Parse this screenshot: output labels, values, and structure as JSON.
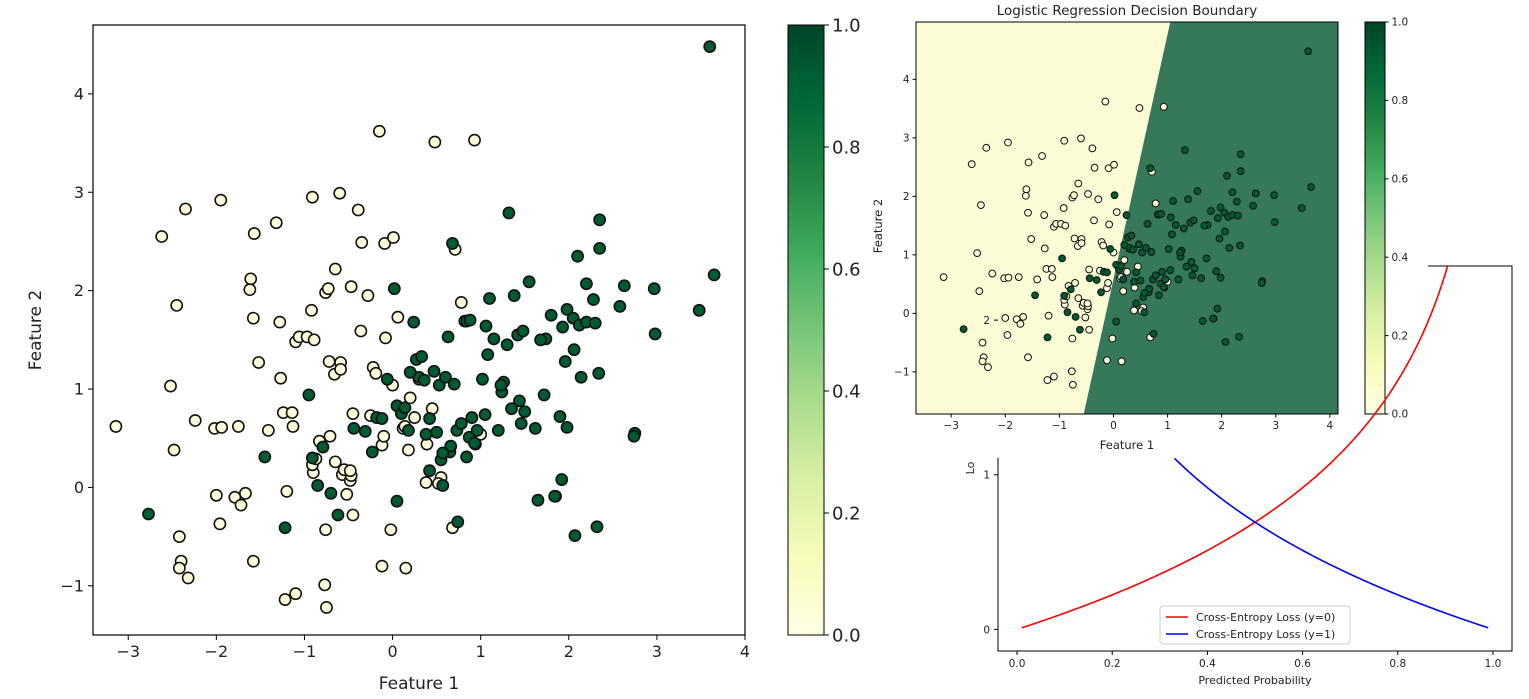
{
  "colors": {
    "class0_fill": "#ffffdd",
    "class1_fill": "#005a32",
    "point_edge": "#111111",
    "region0": "#fbfcd6",
    "region1": "#35785a",
    "colormap": [
      "#ffffe5",
      "#f7fcb9",
      "#d9f0a3",
      "#addd8e",
      "#78c679",
      "#41ab5d",
      "#238443",
      "#006837",
      "#004529"
    ],
    "loss_y0": "#ff0000",
    "loss_y1": "#0000ff"
  },
  "chart_data": [
    {
      "type": "scatter",
      "title": "",
      "xlabel": "Feature 1",
      "ylabel": "Feature 2",
      "xlim": [
        -3.4,
        4.0
      ],
      "ylim": [
        -1.5,
        4.7
      ],
      "xticks": [
        -3,
        -2,
        -1,
        0,
        1,
        2,
        3,
        4
      ],
      "yticks": [
        -1,
        0,
        1,
        2,
        3,
        4
      ],
      "xtick_labels": [
        "−3",
        "−2",
        "−1",
        "0",
        "1",
        "2",
        "3",
        "4"
      ],
      "ytick_labels": [
        "−1",
        "0",
        "1",
        "2",
        "3",
        "4"
      ],
      "colorbar": {
        "range": [
          0.0,
          1.0
        ],
        "ticks": [
          0.0,
          0.2,
          0.4,
          0.6,
          0.8,
          1.0
        ],
        "tick_labels": [
          "0.0",
          "0.2",
          "0.4",
          "0.6",
          "0.8",
          "1.0"
        ]
      },
      "series": [
        {
          "label": 0,
          "points": [
            [
              -3.14,
              0.62
            ],
            [
              -2.62,
              2.55
            ],
            [
              -2.52,
              1.03
            ],
            [
              -2.48,
              0.38
            ],
            [
              -2.45,
              1.85
            ],
            [
              -2.42,
              -0.5
            ],
            [
              -2.4,
              -0.75
            ],
            [
              -2.42,
              -0.82
            ],
            [
              -2.32,
              -0.92
            ],
            [
              -2.35,
              2.83
            ],
            [
              -2.24,
              0.68
            ],
            [
              -1.95,
              2.92
            ],
            [
              -2.02,
              0.6
            ],
            [
              -2.0,
              -0.08
            ],
            [
              -1.96,
              -0.37
            ],
            [
              -1.79,
              -0.1
            ],
            [
              -1.75,
              0.62
            ],
            [
              -1.72,
              -0.18
            ],
            [
              -1.67,
              -0.06
            ],
            [
              -1.61,
              2.12
            ],
            [
              -1.62,
              2.01
            ],
            [
              -1.58,
              1.72
            ],
            [
              -1.57,
              2.58
            ],
            [
              -1.52,
              1.27
            ],
            [
              -1.41,
              0.58
            ],
            [
              -1.32,
              2.69
            ],
            [
              -1.28,
              1.68
            ],
            [
              -1.27,
              1.11
            ],
            [
              -1.24,
              0.76
            ],
            [
              -1.2,
              -0.04
            ],
            [
              -1.14,
              0.76
            ],
            [
              -1.13,
              0.62
            ],
            [
              -1.1,
              1.48
            ],
            [
              -1.06,
              1.53
            ],
            [
              -0.97,
              1.53
            ],
            [
              -0.92,
              1.8
            ],
            [
              -0.9,
              0.15
            ],
            [
              -0.91,
              2.95
            ],
            [
              -0.89,
              1.5
            ],
            [
              -0.83,
              0.47
            ],
            [
              -0.77,
              -0.99
            ],
            [
              -0.76,
              1.98
            ],
            [
              -0.73,
              2.02
            ],
            [
              -0.72,
              1.28
            ],
            [
              -0.71,
              0.52
            ],
            [
              -0.66,
              1.15
            ],
            [
              -0.65,
              2.22
            ],
            [
              -0.65,
              0.26
            ],
            [
              -0.6,
              2.99
            ],
            [
              -0.59,
              1.27
            ],
            [
              -0.59,
              1.2
            ],
            [
              -0.57,
              0.13
            ],
            [
              -0.55,
              0.18
            ],
            [
              -0.52,
              -0.07
            ],
            [
              -0.48,
              0.07
            ],
            [
              -0.47,
              0.12
            ],
            [
              -0.47,
              2.04
            ],
            [
              -0.45,
              0.75
            ],
            [
              -0.39,
              2.82
            ],
            [
              -0.36,
              1.59
            ],
            [
              -0.35,
              2.49
            ],
            [
              -0.28,
              1.95
            ],
            [
              -0.25,
              0.73
            ],
            [
              -0.22,
              1.22
            ],
            [
              -0.19,
              1.16
            ],
            [
              -0.15,
              3.62
            ],
            [
              -0.12,
              0.43
            ],
            [
              -0.1,
              0.52
            ],
            [
              -0.09,
              2.48
            ],
            [
              -0.08,
              1.52
            ],
            [
              0.0,
              1.04
            ],
            [
              0.01,
              2.54
            ],
            [
              0.06,
              1.73
            ],
            [
              0.12,
              0.6
            ],
            [
              0.14,
              0.62
            ],
            [
              0.18,
              0.38
            ],
            [
              0.2,
              0.91
            ],
            [
              0.25,
              0.71
            ],
            [
              0.3,
              1.1
            ],
            [
              0.38,
              0.05
            ],
            [
              0.45,
              0.8
            ],
            [
              0.48,
              3.51
            ],
            [
              0.55,
              0.1
            ],
            [
              0.65,
              0.38
            ],
            [
              0.71,
              2.42
            ],
            [
              0.78,
              1.88
            ],
            [
              0.93,
              3.53
            ],
            [
              1.0,
              0.54
            ],
            [
              0.68,
              -0.41
            ],
            [
              -0.12,
              -0.8
            ],
            [
              0.15,
              -0.82
            ],
            [
              -0.75,
              -1.22
            ],
            [
              -1.1,
              -1.08
            ],
            [
              -1.22,
              -1.14
            ],
            [
              -0.02,
              -0.43
            ],
            [
              -0.45,
              -0.28
            ],
            [
              -1.58,
              -0.75
            ],
            [
              1.85,
              -0.09
            ],
            [
              -0.76,
              -0.43
            ],
            [
              -1.94,
              0.61
            ],
            [
              -0.91,
              0.23
            ],
            [
              0.39,
              0.44
            ],
            [
              0.52,
              0.04
            ],
            [
              -0.87,
              0.29
            ],
            [
              -0.48,
              0.17
            ],
            [
              0.82,
              1.69
            ]
          ]
        },
        {
          "label": 1,
          "points": [
            [
              -2.77,
              -0.27
            ],
            [
              -1.45,
              0.31
            ],
            [
              -1.22,
              -0.41
            ],
            [
              -0.95,
              0.94
            ],
            [
              -0.91,
              0.3
            ],
            [
              -0.85,
              0.02
            ],
            [
              -0.79,
              0.41
            ],
            [
              -0.7,
              -0.06
            ],
            [
              -0.62,
              -0.28
            ],
            [
              -0.44,
              0.6
            ],
            [
              -0.31,
              0.57
            ],
            [
              -0.23,
              0.36
            ],
            [
              -0.18,
              0.71
            ],
            [
              -0.12,
              0.7
            ],
            [
              -0.06,
              1.1
            ],
            [
              0.02,
              2.02
            ],
            [
              0.05,
              0.83
            ],
            [
              0.05,
              -0.14
            ],
            [
              0.1,
              0.75
            ],
            [
              0.14,
              0.81
            ],
            [
              0.18,
              0.58
            ],
            [
              0.24,
              1.68
            ],
            [
              0.27,
              1.3
            ],
            [
              0.3,
              1.12
            ],
            [
              0.33,
              1.33
            ],
            [
              0.36,
              1.09
            ],
            [
              0.42,
              0.7
            ],
            [
              0.42,
              0.17
            ],
            [
              0.47,
              1.18
            ],
            [
              0.5,
              0.56
            ],
            [
              0.53,
              1.04
            ],
            [
              0.55,
              0.28
            ],
            [
              0.57,
              0.02
            ],
            [
              0.6,
              1.12
            ],
            [
              0.63,
              1.53
            ],
            [
              0.65,
              0.36
            ],
            [
              0.66,
              0.42
            ],
            [
              0.68,
              2.48
            ],
            [
              0.7,
              1.05
            ],
            [
              0.73,
              0.58
            ],
            [
              0.74,
              -0.35
            ],
            [
              0.78,
              0.65
            ],
            [
              0.84,
              1.69
            ],
            [
              0.84,
              0.31
            ],
            [
              0.87,
              0.51
            ],
            [
              0.88,
              1.7
            ],
            [
              0.94,
              0.44
            ],
            [
              0.96,
              0.58
            ],
            [
              1.02,
              1.1
            ],
            [
              1.06,
              1.64
            ],
            [
              1.08,
              1.35
            ],
            [
              1.1,
              1.92
            ],
            [
              1.15,
              1.51
            ],
            [
              1.2,
              0.58
            ],
            [
              1.24,
              0.97
            ],
            [
              1.26,
              1.07
            ],
            [
              1.3,
              1.45
            ],
            [
              1.32,
              2.79
            ],
            [
              1.38,
              1.95
            ],
            [
              1.42,
              1.55
            ],
            [
              1.44,
              0.88
            ],
            [
              1.46,
              0.65
            ],
            [
              1.48,
              1.59
            ],
            [
              1.5,
              0.77
            ],
            [
              1.55,
              2.09
            ],
            [
              1.62,
              0.6
            ],
            [
              1.65,
              -0.13
            ],
            [
              1.72,
              0.94
            ],
            [
              1.74,
              1.51
            ],
            [
              1.8,
              1.75
            ],
            [
              1.84,
              -0.09
            ],
            [
              1.9,
              0.72
            ],
            [
              1.92,
              0.08
            ],
            [
              1.93,
              1.63
            ],
            [
              1.96,
              1.28
            ],
            [
              1.98,
              0.61
            ],
            [
              1.98,
              1.81
            ],
            [
              2.05,
              1.72
            ],
            [
              2.06,
              1.4
            ],
            [
              2.07,
              -0.49
            ],
            [
              2.1,
              2.35
            ],
            [
              2.12,
              1.65
            ],
            [
              2.14,
              1.12
            ],
            [
              2.2,
              1.68
            ],
            [
              2.2,
              2.07
            ],
            [
              2.28,
              1.91
            ],
            [
              2.3,
              1.67
            ],
            [
              2.32,
              -0.4
            ],
            [
              2.34,
              1.16
            ],
            [
              2.35,
              2.72
            ],
            [
              2.35,
              2.43
            ],
            [
              2.58,
              1.84
            ],
            [
              2.63,
              2.05
            ],
            [
              2.75,
              0.55
            ],
            [
              2.74,
              0.52
            ],
            [
              2.97,
              2.02
            ],
            [
              2.98,
              1.56
            ],
            [
              3.48,
              1.8
            ],
            [
              3.6,
              4.48
            ],
            [
              3.65,
              2.16
            ],
            [
              1.23,
              1.04
            ],
            [
              0.9,
              0.71
            ],
            [
              1.05,
              0.74
            ],
            [
              1.68,
              1.5
            ],
            [
              0.57,
              0.35
            ],
            [
              0.38,
              0.54
            ],
            [
              1.35,
              0.8
            ],
            [
              0.2,
              1.17
            ],
            [
              0.93,
              0.45
            ]
          ]
        }
      ]
    },
    {
      "type": "scatter",
      "title": "Logistic Regression Decision Boundary",
      "xlabel": "Feature 1",
      "ylabel": "Feature 2",
      "xlim": [
        -3.65,
        4.15
      ],
      "ylim": [
        -1.72,
        4.98
      ],
      "xticks": [
        -3,
        -2,
        -1,
        0,
        1,
        2,
        3,
        4
      ],
      "yticks": [
        -1,
        0,
        1,
        2,
        3,
        4
      ],
      "xtick_labels": [
        "−3",
        "−2",
        "−1",
        "0",
        "1",
        "2",
        "3",
        "4"
      ],
      "ytick_labels": [
        "−1",
        "0",
        "1",
        "2",
        "3",
        "4"
      ],
      "decision_boundary": {
        "bottom": [
          -0.55,
          -1.72
        ],
        "top": [
          1.05,
          4.98
        ]
      },
      "colorbar": {
        "range": [
          0.0,
          1.0
        ],
        "ticks": [
          0.0,
          0.2,
          0.4,
          0.6,
          0.8,
          1.0
        ],
        "tick_labels": [
          "0.0",
          "0.2",
          "0.4",
          "0.6",
          "0.8",
          "1.0"
        ]
      },
      "points_same_as_left_panel": true
    },
    {
      "type": "line",
      "title": "",
      "xlabel": "Predicted Probability",
      "ylabel": "Lo",
      "xlim": [
        -0.04,
        1.04
      ],
      "ylim": [
        -0.14,
        2.35
      ],
      "xticks": [
        0.0,
        0.2,
        0.4,
        0.6,
        0.8,
        1.0
      ],
      "yticks": [
        0,
        1,
        2
      ],
      "xtick_labels": [
        "0.0",
        "0.2",
        "0.4",
        "0.6",
        "0.8",
        "1.0"
      ],
      "ytick_labels": [
        "0",
        "1",
        "2"
      ],
      "legend_position": "lower-center",
      "series": [
        {
          "name": "Cross-Entropy Loss (y=0)",
          "x_range": [
            0.01,
            0.99
          ],
          "formula": "-ln(1-p)"
        },
        {
          "name": "Cross-Entropy Loss (y=1)",
          "x_range": [
            0.01,
            0.99
          ],
          "formula": "-ln(p)"
        }
      ]
    }
  ]
}
